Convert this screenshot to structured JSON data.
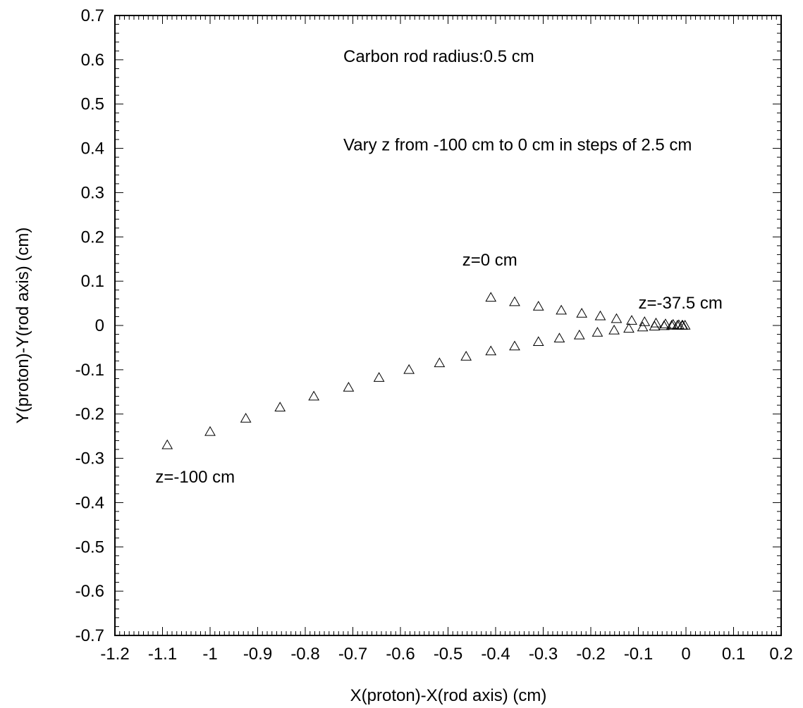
{
  "chart_data": {
    "type": "scatter",
    "title": "",
    "xlabel": "X(proton)-X(rod axis) (cm)",
    "ylabel": "Y(proton)-Y(rod axis) (cm)",
    "xlim": [
      -1.2,
      0.2
    ],
    "ylim": [
      -0.7,
      0.7
    ],
    "x_ticks": [
      "-1.2",
      "-1.1",
      "-1",
      "-0.9",
      "-0.8",
      "-0.7",
      "-0.6",
      "-0.5",
      "-0.4",
      "-0.3",
      "-0.2",
      "-0.1",
      "0",
      "0.1",
      "0.2"
    ],
    "y_ticks": [
      "0.7",
      "0.6",
      "0.5",
      "0.4",
      "0.3",
      "0.2",
      "0.1",
      "0",
      "-0.1",
      "-0.2",
      "-0.3",
      "-0.4",
      "-0.5",
      "-0.6",
      "-0.7"
    ],
    "grid": false,
    "marker": "open-triangle",
    "annotations": [
      {
        "text": "Carbon rod radius:0.5 cm",
        "x": -0.72,
        "y": 0.595
      },
      {
        "text": "Vary z from -100 cm to 0 cm in steps of 2.5 cm",
        "x": -0.72,
        "y": 0.395
      },
      {
        "text": "z=0 cm",
        "x": -0.47,
        "y": 0.135
      },
      {
        "text": "z=-37.5 cm",
        "x": -0.1,
        "y": 0.038
      },
      {
        "text": "z=-100 cm",
        "x": -1.115,
        "y": -0.355
      }
    ],
    "series": [
      {
        "x": [
          -1.09,
          -1.0,
          -0.925,
          -0.853,
          -0.782,
          -0.709,
          -0.645,
          -0.582,
          -0.518,
          -0.462,
          -0.41,
          -0.36,
          -0.31,
          -0.266,
          -0.224,
          -0.186,
          -0.151,
          -0.12,
          -0.091,
          -0.066,
          -0.046,
          -0.03,
          -0.018,
          -0.008,
          -0.002
        ],
        "y": [
          -0.27,
          -0.24,
          -0.21,
          -0.185,
          -0.16,
          -0.14,
          -0.118,
          -0.1,
          -0.085,
          -0.07,
          -0.058,
          -0.047,
          -0.037,
          -0.029,
          -0.022,
          -0.016,
          -0.011,
          -0.007,
          -0.004,
          -0.002,
          -0.001,
          0.0,
          0.0,
          0.0,
          0.0
        ]
      },
      {
        "x": [
          -0.41,
          -0.36,
          -0.31,
          -0.262,
          -0.219,
          -0.18,
          -0.146,
          -0.114,
          -0.087,
          -0.063,
          -0.043,
          -0.027,
          -0.015,
          -0.007
        ],
        "y": [
          0.063,
          0.053,
          0.043,
          0.034,
          0.027,
          0.021,
          0.015,
          0.011,
          0.008,
          0.005,
          0.003,
          0.002,
          0.001,
          0.0
        ]
      }
    ]
  }
}
